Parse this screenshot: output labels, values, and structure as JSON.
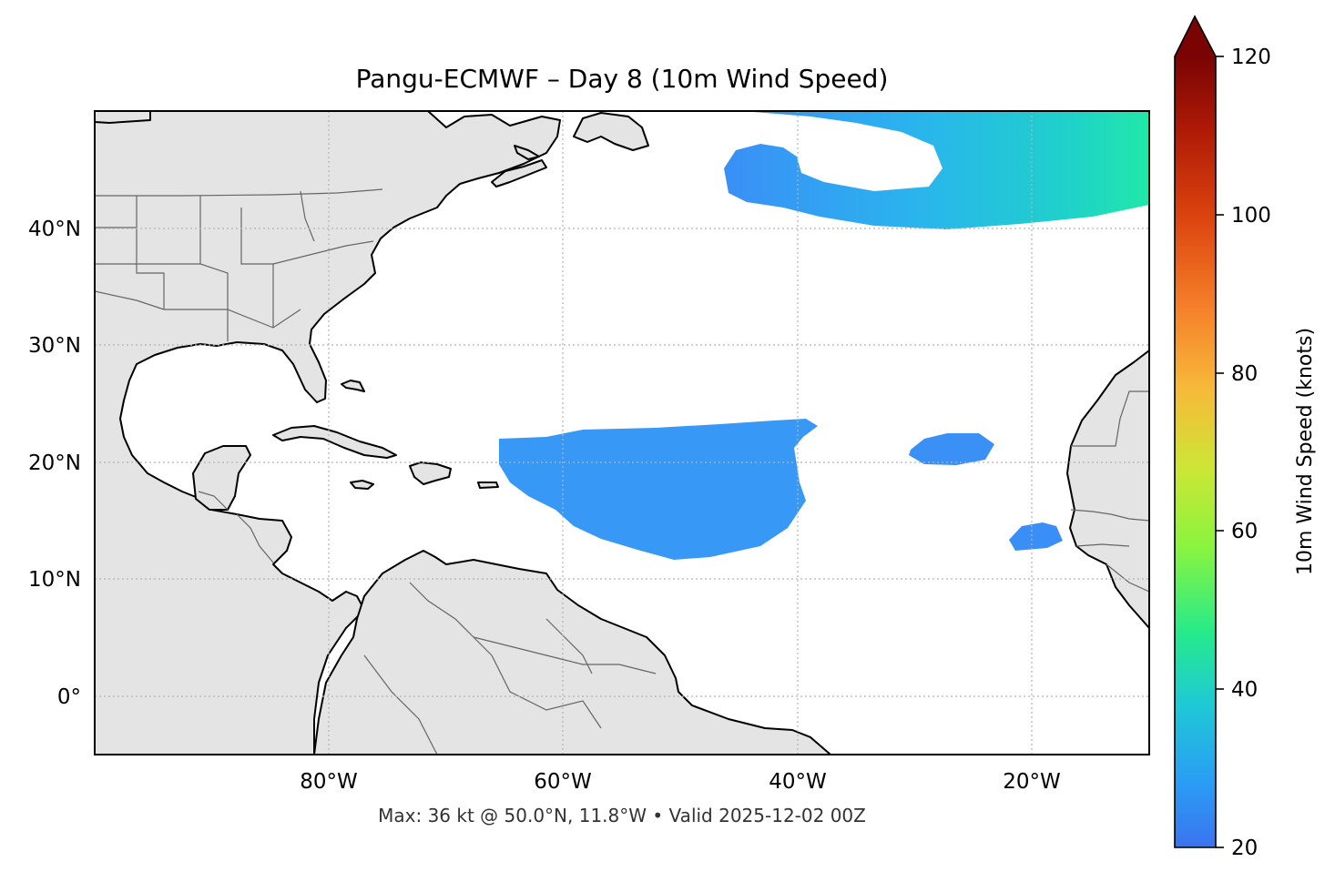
{
  "title": "Pangu-ECMWF – Day 8 (10m Wind Speed)",
  "footer": "Max: 36 kt @ 50.0°N, 11.8°W • Valid 2025-12-02 00Z",
  "map": {
    "extent": {
      "lon_min": -100,
      "lon_max": -10,
      "lat_min": -5,
      "lat_max": 50
    },
    "gridlines": true,
    "lat_ticks": [
      {
        "value": 40,
        "label": "40°N"
      },
      {
        "value": 30,
        "label": "30°N"
      },
      {
        "value": 20,
        "label": "20°N"
      },
      {
        "value": 10,
        "label": "10°N"
      },
      {
        "value": 0,
        "label": "0°"
      }
    ],
    "lon_ticks": [
      {
        "value": -80,
        "label": "80°W"
      },
      {
        "value": -60,
        "label": "60°W"
      },
      {
        "value": -40,
        "label": "40°W"
      },
      {
        "value": -20,
        "label": "20°W"
      }
    ],
    "land_color": "#e4e4e4",
    "ocean_color": "#ffffff"
  },
  "colorbar": {
    "label": "10m Wind Speed (knots)",
    "min": 20,
    "max": 120,
    "extend": "max",
    "ticks": [
      {
        "value": 20,
        "label": "20"
      },
      {
        "value": 40,
        "label": "40"
      },
      {
        "value": 60,
        "label": "60"
      },
      {
        "value": 80,
        "label": "80"
      },
      {
        "value": 100,
        "label": "100"
      },
      {
        "value": 120,
        "label": "120"
      }
    ],
    "colormap": [
      "#4a63e0",
      "#3a8ff6",
      "#22c8e0",
      "#1fe89a",
      "#7cf84a",
      "#c8ee34",
      "#f3c13a",
      "#fb8a22",
      "#e2470f",
      "#b51906",
      "#7a0403"
    ]
  },
  "wind_regions": [
    {
      "name": "north-atlantic-jet",
      "speed_kt": 32
    },
    {
      "name": "central-atlantic-trades",
      "speed_kt": 24
    },
    {
      "name": "east-atlantic-patch",
      "speed_kt": 23
    },
    {
      "name": "cape-verde-patch",
      "speed_kt": 22
    }
  ]
}
